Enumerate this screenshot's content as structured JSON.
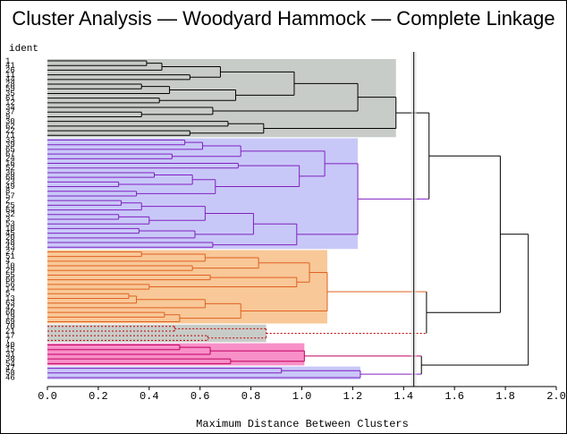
{
  "chart_data": {
    "type": "dendrogram",
    "title": "Cluster Analysis — Woodyard Hammock — Complete Linkage",
    "y_label": "ident",
    "x_label": "Maximum Distance Between Clusters",
    "xlim": [
      0,
      2.0
    ],
    "xticks": [
      {
        "value": 0,
        "label": "0.0"
      },
      {
        "value": 0.2,
        "label": "0.2"
      },
      {
        "value": 0.4,
        "label": "0.4"
      },
      {
        "value": 0.6,
        "label": "0.6"
      },
      {
        "value": 0.8,
        "label": "0.8"
      },
      {
        "value": 1.0,
        "label": "1.0"
      },
      {
        "value": 1.2,
        "label": "1.2"
      },
      {
        "value": 1.4,
        "label": "1.4"
      },
      {
        "value": 1.6,
        "label": "1.6"
      },
      {
        "value": 1.8,
        "label": "1.8"
      },
      {
        "value": 2.0,
        "label": "2.0"
      }
    ],
    "cutoff": 1.44,
    "tree": {
      "height": 1.89,
      "children": [
        {
          "height": 1.78,
          "children": [
            {
              "height": 1.5,
              "children": [
                {
                  "height": 1.37,
                  "color": "#000000",
                  "fill": "#c8ccc8",
                  "children": [
                    {
                      "height": 1.22,
                      "children": [
                        {
                          "height": 0.97,
                          "children": [
                            {
                              "height": 0.68,
                              "children": [
                                {
                                  "height": 0.45,
                                  "children": [
                                    {
                                      "height": 0.39,
                                      "children": [
                                        "1",
                                        "41"
                                      ]
                                    },
                                    "26"
                                  ]
                                },
                                {
                                  "height": 0.56,
                                  "children": [
                                    "11",
                                    "44"
                                  ]
                                }
                              ]
                            },
                            {
                              "height": 0.74,
                              "children": [
                                {
                                  "height": 0.48,
                                  "children": [
                                    {
                                      "height": 0.37,
                                      "children": [
                                        "28",
                                        "59"
                                      ]
                                    },
                                    "35"
                                  ]
                                },
                                {
                                  "height": 0.44,
                                  "children": [
                                    "61",
                                    "12"
                                  ]
                                }
                              ]
                            }
                          ]
                        },
                        {
                          "height": 0.65,
                          "children": [
                            "34",
                            {
                              "height": 0.37,
                              "children": [
                                "37",
                                "9"
                              ]
                            }
                          ]
                        }
                      ]
                    },
                    {
                      "height": 0.85,
                      "children": [
                        {
                          "height": 0.71,
                          "children": [
                            "30",
                            "62"
                          ]
                        },
                        {
                          "height": 0.56,
                          "children": [
                            "22",
                            "71"
                          ]
                        }
                      ]
                    }
                  ]
                },
                {
                  "height": 1.22,
                  "color": "#8020c0",
                  "fill": "#c8c8f8",
                  "children": [
                    {
                      "height": 1.09,
                      "children": [
                        {
                          "height": 0.76,
                          "children": [
                            {
                              "height": 0.61,
                              "children": [
                                {
                                  "height": 0.54,
                                  "children": [
                                    "33",
                                    "39"
                                  ]
                                },
                                "65"
                              ]
                            },
                            {
                              "height": 0.49,
                              "children": [
                                "67",
                                "24"
                              ]
                            }
                          ]
                        },
                        {
                          "height": 0.99,
                          "children": [
                            {
                              "height": 0.75,
                              "children": [
                                "16",
                                "52"
                              ]
                            },
                            {
                              "height": 0.66,
                              "children": [
                                {
                                  "height": 0.57,
                                  "children": [
                                    {
                                      "height": 0.42,
                                      "children": [
                                        "36",
                                        "68"
                                      ]
                                    },
                                    {
                                      "height": 0.28,
                                      "children": [
                                        "23",
                                        "49"
                                      ]
                                    }
                                  ]
                                },
                                {
                                  "height": 0.35,
                                  "children": [
                                    "8",
                                    "57"
                                  ]
                                }
                              ]
                            }
                          ]
                        }
                      ]
                    },
                    {
                      "height": 0.98,
                      "children": [
                        {
                          "height": 0.81,
                          "children": [
                            {
                              "height": 0.62,
                              "children": [
                                {
                                  "height": 0.37,
                                  "children": [
                                    {
                                      "height": 0.29,
                                      "children": [
                                        "2",
                                        "25"
                                      ]
                                    },
                                    "64"
                                  ]
                                },
                                {
                                  "height": 0.4,
                                  "children": [
                                    {
                                      "height": 0.28,
                                      "children": [
                                        "32",
                                        "3"
                                      ]
                                    },
                                    "53"
                                  ]
                                }
                              ]
                            },
                            {
                              "height": 0.58,
                              "children": [
                                {
                                  "height": 0.36,
                                  "children": [
                                    "18",
                                    "45"
                                  ]
                                },
                                "20"
                              ]
                            }
                          ]
                        },
                        {
                          "height": 0.65,
                          "children": [
                            "48",
                            "43"
                          ]
                        }
                      ]
                    }
                  ]
                }
              ]
            },
            {
              "height": 1.49,
              "children": [
                {
                  "height": 1.1,
                  "color": "#e06020",
                  "fill": "#f8c898",
                  "children": [
                    {
                      "height": 1.03,
                      "children": [
                        {
                          "height": 0.83,
                          "children": [
                            {
                              "height": 0.62,
                              "children": [
                                {
                                  "height": 0.37,
                                  "children": [
                                    "27",
                                    "51"
                                  ]
                                },
                                "4"
                              ]
                            },
                            {
                              "height": 0.57,
                              "children": [
                                "10",
                                "29"
                              ]
                            }
                          ]
                        },
                        {
                          "height": 0.98,
                          "children": [
                            {
                              "height": 0.64,
                              "children": [
                                "55",
                                "66"
                              ]
                            },
                            {
                              "height": 0.4,
                              "children": [
                                "56",
                                "14"
                              ]
                            }
                          ]
                        }
                      ]
                    },
                    {
                      "height": 0.76,
                      "children": [
                        {
                          "height": 0.62,
                          "children": [
                            {
                              "height": 0.35,
                              "children": [
                                {
                                  "height": 0.32,
                                  "children": [
                                    "5",
                                    "13"
                                  ]
                                },
                                "63"
                              ]
                            },
                            "42"
                          ]
                        },
                        {
                          "height": 0.52,
                          "children": [
                            {
                              "height": 0.46,
                              "children": [
                                "60",
                                "19"
                              ]
                            },
                            "69"
                          ]
                        }
                      ]
                    }
                  ]
                },
                {
                  "height": 0.86,
                  "color": "#c00000",
                  "fill": "#c8ccc8",
                  "dashed": true,
                  "children": [
                    {
                      "height": 0.5,
                      "children": [
                        "70",
                        "21"
                      ]
                    },
                    {
                      "height": 0.63,
                      "children": [
                        "17",
                        "7"
                      ]
                    }
                  ]
                }
              ]
            }
          ]
        },
        {
          "height": 1.47,
          "children": [
            {
              "height": 1.01,
              "color": "#c00060",
              "fill": "#f890c8",
              "children": [
                {
                  "height": 0.64,
                  "children": [
                    {
                      "height": 0.52,
                      "children": [
                        "40",
                        "15"
                      ]
                    },
                    "31"
                  ]
                },
                {
                  "height": 0.72,
                  "children": [
                    "38",
                    "54"
                  ]
                }
              ]
            },
            {
              "height": 1.23,
              "color": "#8020c0",
              "fill": "#c8c8f8",
              "children": [
                {
                  "height": 0.92,
                  "children": [
                    "47",
                    "58"
                  ]
                },
                "46"
              ]
            }
          ]
        }
      ]
    }
  }
}
